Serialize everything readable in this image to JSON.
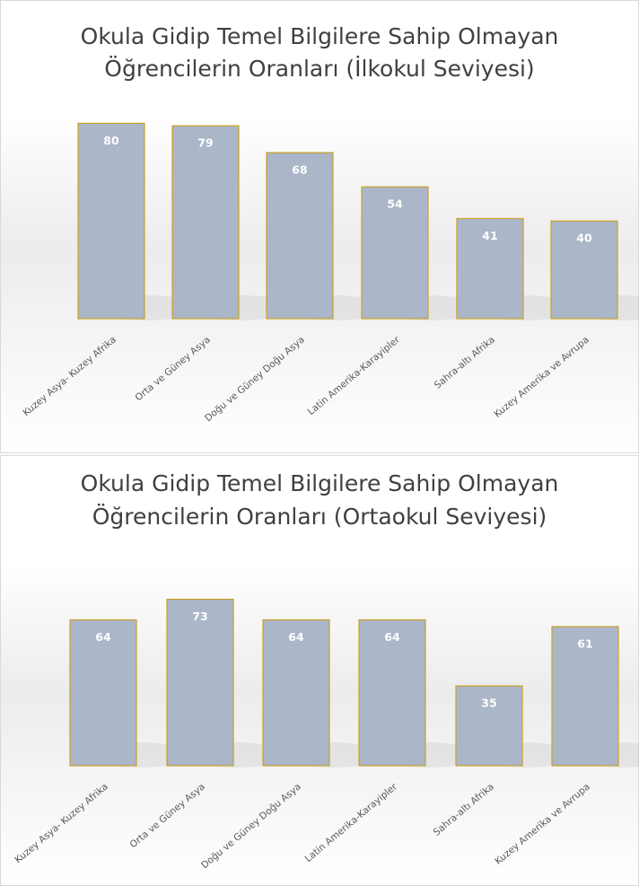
{
  "chart_data": [
    {
      "type": "bar",
      "title": "Okula Gidip Temel Bilgilere Sahip Olmayan\nÖğrencilerin Oranları (İlkokul Seviyesi)",
      "categories": [
        "Kuzey Asya- Kuzey Afrika",
        "Orta ve Güney Asya",
        "Doğu ve Güney Doğu Asya",
        "Latin Amerika-Karayipler",
        "Sahra-altı Afrika",
        "Kuzey Amerika ve Avrupa"
      ],
      "values": [
        80,
        79,
        68,
        54,
        41,
        40
      ],
      "color": "#abb6c8"
    },
    {
      "type": "bar",
      "title": "Okula Gidip Temel Bilgilere Sahip Olmayan\nÖğrencilerin Oranları (Ortaokul Seviyesi)",
      "categories": [
        "Kuzey Asya- Kuzey Afrika",
        "Orta ve Güney Asya",
        "Doğu ve Güney Doğu Asya",
        "Latin Amerika-Karayipler",
        "Sahra-altı Afrika",
        "Kuzey Amerika ve Avrupa"
      ],
      "values": [
        64,
        73,
        64,
        64,
        35,
        61
      ],
      "color": "#abb6c8"
    }
  ]
}
